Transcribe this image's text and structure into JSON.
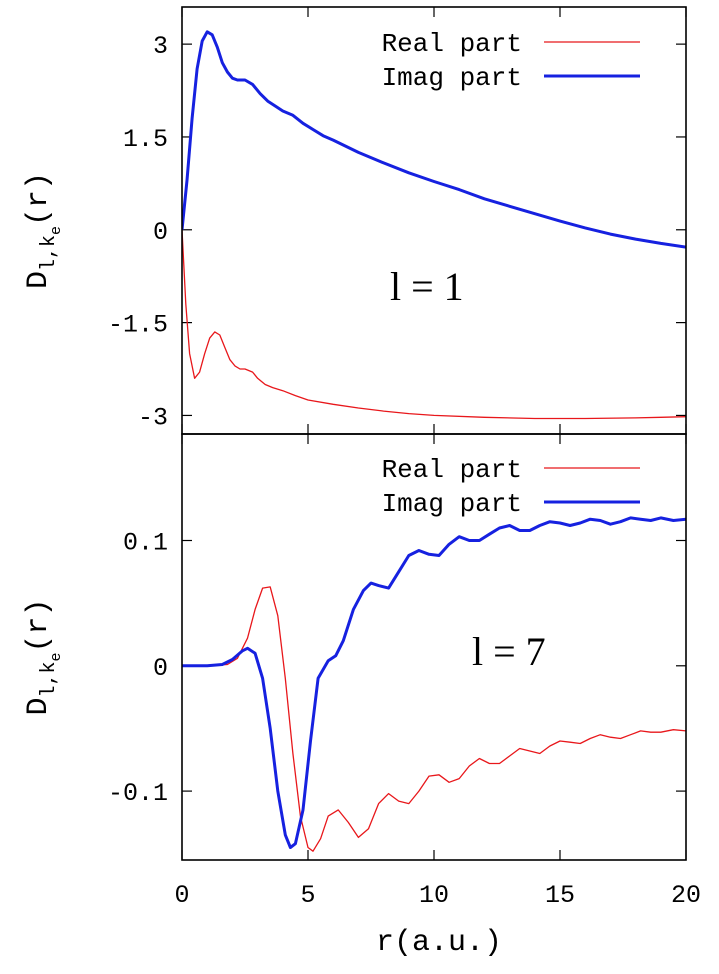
{
  "chart_data": [
    {
      "type": "line",
      "ylabel": "D",
      "ylabel_sub1": "l,k",
      "ylabel_sub2": "e",
      "ylabel_tail": "(r)",
      "xlim": [
        0,
        20
      ],
      "ylim": [
        -3.3,
        3.6
      ],
      "yticks": [
        {
          "value": 3,
          "label": "3"
        },
        {
          "value": 1.5,
          "label": "1.5"
        },
        {
          "value": 0,
          "label": "0"
        },
        {
          "value": -1.5,
          "label": "-1.5"
        },
        {
          "value": -3,
          "label": "-3"
        }
      ],
      "annotation": "l = 1",
      "legend_position": "top-right",
      "series": [
        {
          "name": "Real part",
          "color": "#e8171b",
          "stroke": 1.3,
          "x": [
            0,
            0.15,
            0.3,
            0.5,
            0.7,
            0.9,
            1.1,
            1.3,
            1.5,
            1.7,
            1.9,
            2.1,
            2.3,
            2.5,
            2.8,
            3.0,
            3.3,
            3.6,
            4.0,
            4.5,
            5,
            6,
            7,
            8,
            9,
            10,
            12,
            14,
            16,
            18,
            19,
            20
          ],
          "values": [
            0,
            -1.2,
            -2.0,
            -2.4,
            -2.3,
            -2.0,
            -1.75,
            -1.65,
            -1.7,
            -1.9,
            -2.1,
            -2.2,
            -2.25,
            -2.25,
            -2.3,
            -2.4,
            -2.5,
            -2.55,
            -2.6,
            -2.68,
            -2.75,
            -2.82,
            -2.88,
            -2.93,
            -2.97,
            -3.0,
            -3.03,
            -3.05,
            -3.05,
            -3.04,
            -3.03,
            -3.02
          ]
        },
        {
          "name": "Imag part",
          "color": "#1621e0",
          "stroke": 3,
          "x": [
            0,
            0.2,
            0.4,
            0.6,
            0.8,
            1.0,
            1.2,
            1.4,
            1.6,
            1.8,
            2.0,
            2.2,
            2.5,
            2.8,
            3.1,
            3.4,
            3.7,
            4.0,
            4.4,
            4.8,
            5.2,
            5.6,
            6,
            7,
            8,
            9,
            10,
            11,
            12,
            13,
            14,
            15,
            16,
            17,
            18,
            19,
            20
          ],
          "values": [
            0,
            0.8,
            1.8,
            2.6,
            3.05,
            3.2,
            3.15,
            2.95,
            2.7,
            2.55,
            2.45,
            2.42,
            2.42,
            2.35,
            2.2,
            2.08,
            2.0,
            1.92,
            1.85,
            1.72,
            1.62,
            1.52,
            1.45,
            1.25,
            1.08,
            0.92,
            0.78,
            0.65,
            0.5,
            0.38,
            0.26,
            0.14,
            0.03,
            -0.07,
            -0.15,
            -0.22,
            -0.28
          ]
        }
      ]
    },
    {
      "type": "line",
      "ylabel": "D",
      "ylabel_sub1": "l,k",
      "ylabel_sub2": "e",
      "ylabel_tail": "(r)",
      "xlabel": "r(a.u.)",
      "xlim": [
        0,
        20
      ],
      "ylim": [
        -0.155,
        0.185
      ],
      "xticks": [
        {
          "value": 0,
          "label": "0"
        },
        {
          "value": 5,
          "label": "5"
        },
        {
          "value": 10,
          "label": "10"
        },
        {
          "value": 15,
          "label": "15"
        },
        {
          "value": 20,
          "label": "20"
        }
      ],
      "yticks": [
        {
          "value": 0.1,
          "label": "0.1"
        },
        {
          "value": 0,
          "label": "0"
        },
        {
          "value": -0.1,
          "label": "-0.1"
        }
      ],
      "annotation": "l = 7",
      "legend_position": "top-right",
      "series": [
        {
          "name": "Real part",
          "color": "#e8171b",
          "stroke": 1.3,
          "x": [
            0,
            1,
            1.8,
            2.2,
            2.6,
            2.9,
            3.2,
            3.5,
            3.8,
            4.1,
            4.4,
            4.7,
            5.0,
            5.2,
            5.5,
            5.8,
            6.2,
            6.6,
            7.0,
            7.4,
            7.8,
            8.2,
            8.6,
            9.0,
            9.4,
            9.8,
            10.2,
            10.6,
            11.0,
            11.4,
            11.8,
            12.2,
            12.6,
            13.0,
            13.4,
            13.8,
            14.2,
            14.6,
            15.0,
            15.4,
            15.8,
            16.2,
            16.6,
            17.0,
            17.4,
            17.8,
            18.2,
            18.6,
            19.0,
            19.5,
            20
          ],
          "values": [
            0,
            0,
            0.001,
            0.006,
            0.022,
            0.045,
            0.062,
            0.063,
            0.04,
            -0.01,
            -0.07,
            -0.12,
            -0.145,
            -0.148,
            -0.138,
            -0.12,
            -0.115,
            -0.125,
            -0.137,
            -0.13,
            -0.11,
            -0.102,
            -0.108,
            -0.11,
            -0.1,
            -0.088,
            -0.087,
            -0.093,
            -0.09,
            -0.08,
            -0.074,
            -0.078,
            -0.078,
            -0.072,
            -0.066,
            -0.068,
            -0.07,
            -0.064,
            -0.06,
            -0.061,
            -0.062,
            -0.058,
            -0.055,
            -0.057,
            -0.058,
            -0.055,
            -0.052,
            -0.053,
            -0.053,
            -0.051,
            -0.052
          ]
        },
        {
          "name": "Imag part",
          "color": "#1621e0",
          "stroke": 3,
          "x": [
            0,
            1,
            1.6,
            2.0,
            2.4,
            2.6,
            2.9,
            3.2,
            3.5,
            3.8,
            4.1,
            4.3,
            4.5,
            4.8,
            5.1,
            5.4,
            5.8,
            6.1,
            6.4,
            6.8,
            7.2,
            7.5,
            7.8,
            8.2,
            8.6,
            9.0,
            9.4,
            9.8,
            10.2,
            10.6,
            11.0,
            11.4,
            11.8,
            12.2,
            12.6,
            13.0,
            13.4,
            13.8,
            14.2,
            14.6,
            15.0,
            15.4,
            15.8,
            16.2,
            16.6,
            17.0,
            17.4,
            17.8,
            18.2,
            18.6,
            19.0,
            19.5,
            20
          ],
          "values": [
            0,
            0,
            0.001,
            0.005,
            0.012,
            0.014,
            0.01,
            -0.01,
            -0.05,
            -0.1,
            -0.135,
            -0.145,
            -0.142,
            -0.115,
            -0.06,
            -0.01,
            0.004,
            0.008,
            0.02,
            0.045,
            0.06,
            0.066,
            0.064,
            0.062,
            0.075,
            0.088,
            0.092,
            0.089,
            0.088,
            0.097,
            0.103,
            0.1,
            0.1,
            0.105,
            0.11,
            0.112,
            0.108,
            0.108,
            0.112,
            0.115,
            0.114,
            0.112,
            0.114,
            0.117,
            0.116,
            0.113,
            0.115,
            0.118,
            0.117,
            0.116,
            0.118,
            0.116,
            0.117
          ]
        }
      ]
    }
  ]
}
